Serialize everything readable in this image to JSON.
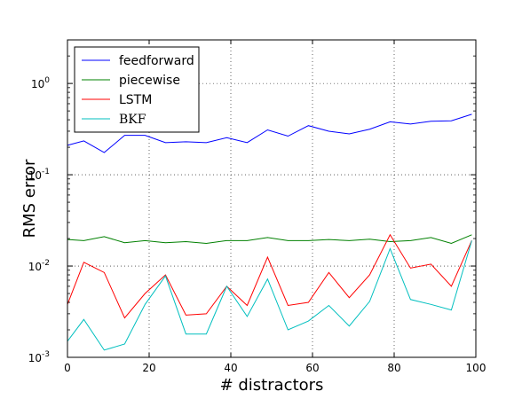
{
  "chart_data": {
    "type": "line",
    "xlabel": "# distractors",
    "ylabel": "RMS error",
    "xlim": [
      0,
      100
    ],
    "ylim": [
      0.001,
      3
    ],
    "yscale": "log",
    "grid": true,
    "legend_position": "top-left",
    "xticks": [
      "0",
      "20",
      "40",
      "60",
      "80",
      "100"
    ],
    "yticks": [
      {
        "base": "10",
        "exp": "-3"
      },
      {
        "base": "10",
        "exp": "-2"
      },
      {
        "base": "10",
        "exp": "-1"
      },
      {
        "base": "10",
        "exp": "0"
      }
    ],
    "x": [
      0,
      4,
      9,
      14,
      19,
      24,
      29,
      34,
      39,
      44,
      49,
      54,
      59,
      64,
      69,
      74,
      79,
      84,
      89,
      94,
      99
    ],
    "series": [
      {
        "name": "feedforward",
        "color": "#0000ff",
        "values": [
          0.21,
          0.235,
          0.175,
          0.27,
          0.27,
          0.225,
          0.23,
          0.225,
          0.255,
          0.225,
          0.31,
          0.265,
          0.345,
          0.3,
          0.28,
          0.315,
          0.38,
          0.36,
          0.385,
          0.39,
          0.46
        ]
      },
      {
        "name": "piecewise",
        "color": "#008000",
        "values": [
          0.0195,
          0.019,
          0.021,
          0.018,
          0.019,
          0.018,
          0.0185,
          0.0177,
          0.019,
          0.019,
          0.0205,
          0.019,
          0.019,
          0.0195,
          0.019,
          0.0197,
          0.0185,
          0.019,
          0.0205,
          0.0177,
          0.022
        ]
      },
      {
        "name": "LSTM",
        "color": "#ff0000",
        "values": [
          0.0038,
          0.011,
          0.0085,
          0.0027,
          0.005,
          0.008,
          0.0029,
          0.003,
          0.006,
          0.0037,
          0.0125,
          0.0037,
          0.004,
          0.0085,
          0.0045,
          0.008,
          0.022,
          0.0095,
          0.0105,
          0.006,
          0.019
        ]
      },
      {
        "name": "BKF",
        "color": "#00bfbf",
        "values": [
          0.0015,
          0.0026,
          0.0012,
          0.0014,
          0.0038,
          0.0078,
          0.0018,
          0.0018,
          0.006,
          0.0028,
          0.0072,
          0.002,
          0.0025,
          0.0037,
          0.0022,
          0.0041,
          0.0155,
          0.0043,
          0.0038,
          0.0033,
          0.019
        ]
      }
    ]
  }
}
